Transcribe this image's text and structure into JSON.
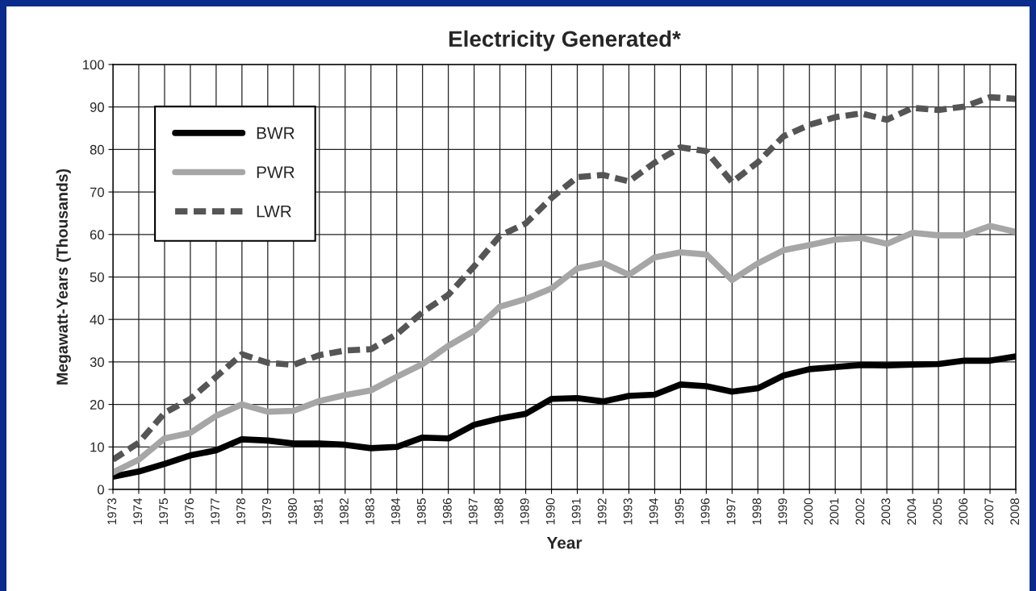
{
  "chart_data": {
    "type": "line",
    "title": "Electricity Generated*",
    "xlabel": "Year",
    "ylabel": "Megawatt-Years (Thousands)",
    "x": [
      1973,
      1974,
      1975,
      1976,
      1977,
      1978,
      1979,
      1980,
      1981,
      1982,
      1983,
      1984,
      1985,
      1986,
      1987,
      1988,
      1989,
      1990,
      1991,
      1992,
      1993,
      1994,
      1995,
      1996,
      1997,
      1998,
      1999,
      2000,
      2001,
      2002,
      2003,
      2004,
      2005,
      2006,
      2007,
      2008
    ],
    "series": [
      {
        "name": "BWR",
        "color": "#000000",
        "line_style": "solid",
        "values": [
          3,
          4.2,
          6,
          8,
          9.2,
          11.8,
          11.5,
          10.8,
          10.8,
          10.5,
          9.7,
          10,
          12.2,
          12,
          15.2,
          16.7,
          17.8,
          21.3,
          21.5,
          20.7,
          22,
          22.3,
          24.7,
          24.3,
          23,
          23.8,
          26.8,
          28.3,
          28.8,
          29.3,
          29.2,
          29.4,
          29.5,
          30.3,
          30.3,
          31.3
        ]
      },
      {
        "name": "PWR",
        "color": "#a6a6a6",
        "line_style": "solid",
        "values": [
          4,
          7,
          12,
          13.3,
          17.3,
          20,
          18.3,
          18.5,
          20.8,
          22.2,
          23.3,
          26.5,
          29.5,
          33.8,
          37.3,
          43,
          44.8,
          47.3,
          52,
          53.3,
          50.5,
          54.6,
          55.8,
          55.3,
          49.3,
          53.2,
          56.3,
          57.5,
          58.8,
          59.2,
          57.8,
          60.4,
          59.8,
          59.8,
          62,
          60.6
        ]
      },
      {
        "name": "LWR",
        "color": "#555555",
        "line_style": "dashed",
        "values": [
          7,
          11,
          18,
          21.3,
          26.5,
          31.8,
          29.8,
          29.3,
          31.6,
          32.7,
          33,
          36.5,
          41.7,
          45.8,
          52.5,
          59.7,
          62.6,
          68.6,
          73.5,
          74,
          72.5,
          76.9,
          80.5,
          79.6,
          72.3,
          77,
          83.1,
          85.8,
          87.6,
          88.5,
          87,
          89.8,
          89.3,
          90.1,
          92.3,
          91.9
        ]
      }
    ],
    "xlim": [
      1973,
      2008
    ],
    "xticks": [
      1973,
      1974,
      1975,
      1976,
      1977,
      1978,
      1979,
      1980,
      1981,
      1982,
      1983,
      1984,
      1985,
      1986,
      1987,
      1988,
      1989,
      1990,
      1991,
      1992,
      1993,
      1994,
      1995,
      1996,
      1997,
      1998,
      1999,
      2000,
      2001,
      2002,
      2003,
      2004,
      2005,
      2006,
      2007,
      2008
    ],
    "ylim": [
      0,
      100
    ],
    "yticks": [
      0,
      10,
      20,
      30,
      40,
      50,
      60,
      70,
      80,
      90,
      100
    ],
    "grid": true,
    "legend": "top left",
    "marker": "none"
  }
}
